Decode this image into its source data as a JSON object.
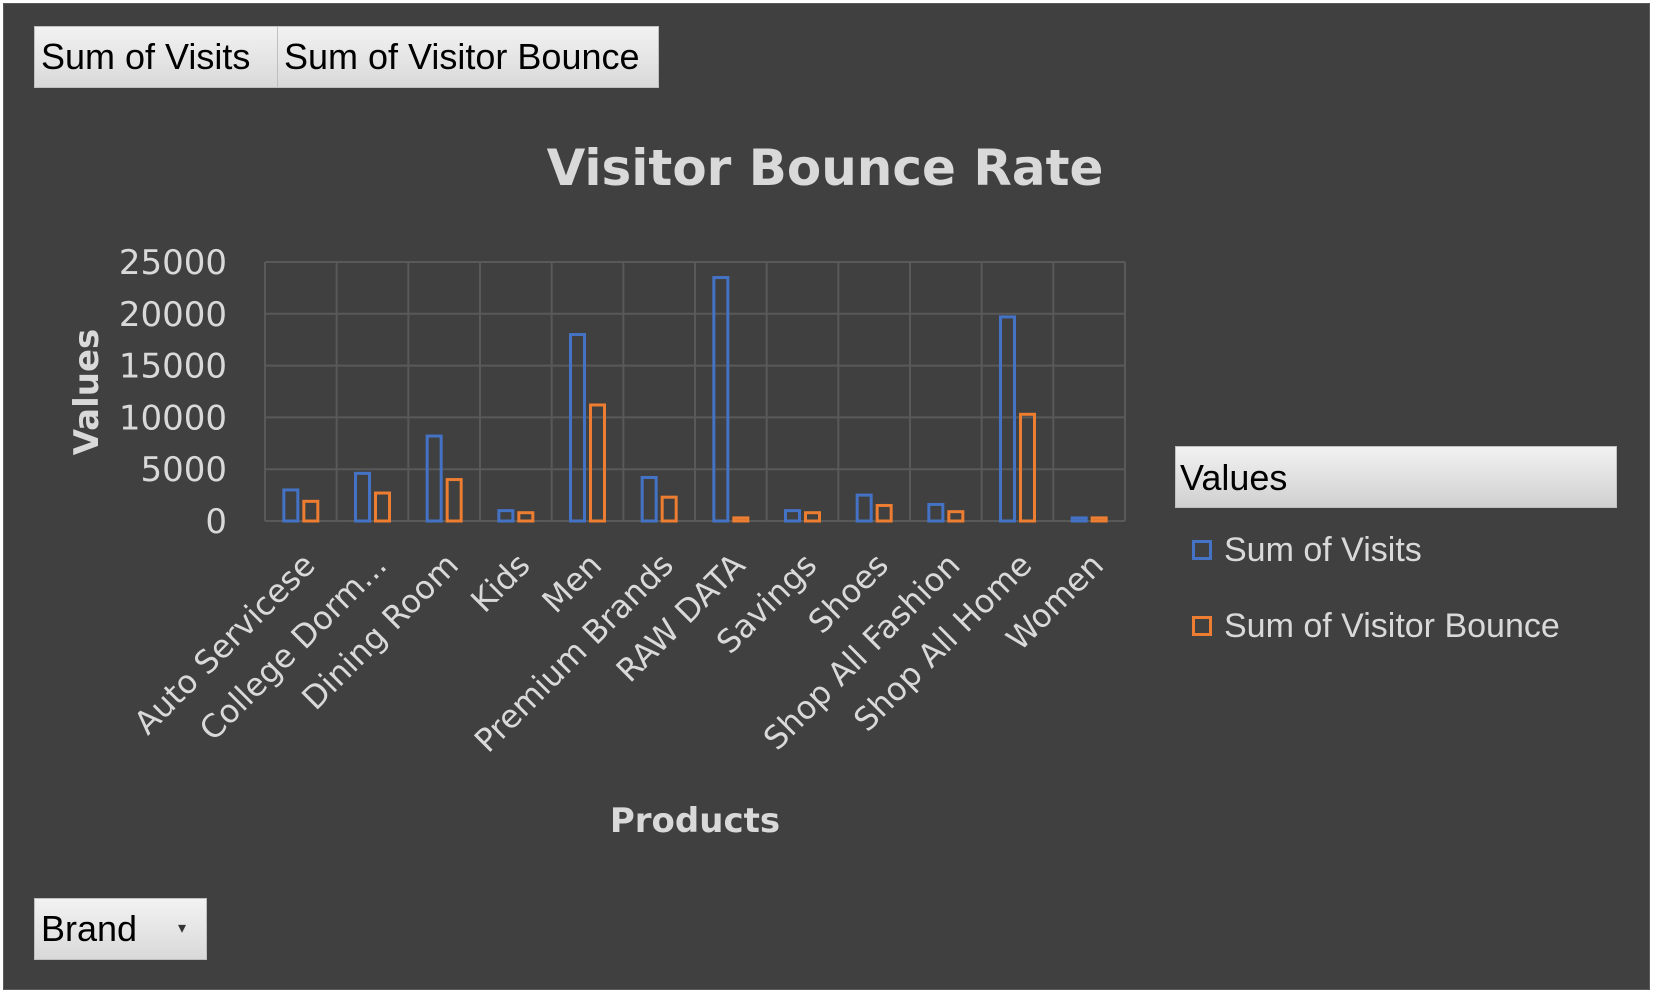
{
  "field_buttons": {
    "visits": "Sum of Visits",
    "bounce": "Sum of Visitor Bounce",
    "brand": "Brand",
    "brand_dropdown_icon": "dropdown-arrow-icon"
  },
  "legend": {
    "header": "Values",
    "items": [
      {
        "label": "Sum of Visits",
        "color": "#4472c4"
      },
      {
        "label": "Sum of Visitor Bounce",
        "color": "#ed7d31"
      }
    ],
    "placement": "right"
  },
  "colors": {
    "background": "#404040",
    "visits": "#4472c4",
    "bounce": "#ed7d31",
    "grid": "#595959",
    "text": "#d9d9d9"
  },
  "chart_data": {
    "type": "bar",
    "title": "Visitor Bounce Rate",
    "xlabel": "Products",
    "ylabel": "Values",
    "ylim": [
      0,
      25000
    ],
    "yticks": [
      0,
      5000,
      10000,
      15000,
      20000,
      25000
    ],
    "grid": true,
    "categories": [
      "Auto Servicese",
      "College Dorm...",
      "Dining Room",
      "Kids",
      "Men",
      "Premium Brands",
      "RAW DATA",
      "Savings",
      "Shoes",
      "Shop All Fashion",
      "Shop All Home",
      "Women"
    ],
    "series": [
      {
        "name": "Sum of Visits",
        "values": [
          3000,
          4600,
          8200,
          1000,
          18000,
          4200,
          23500,
          1000,
          2500,
          1600,
          19700,
          300
        ]
      },
      {
        "name": "Sum of Visitor Bounce",
        "values": [
          1900,
          2700,
          4000,
          800,
          11200,
          2300,
          300,
          800,
          1500,
          900,
          10300,
          300
        ]
      }
    ]
  }
}
